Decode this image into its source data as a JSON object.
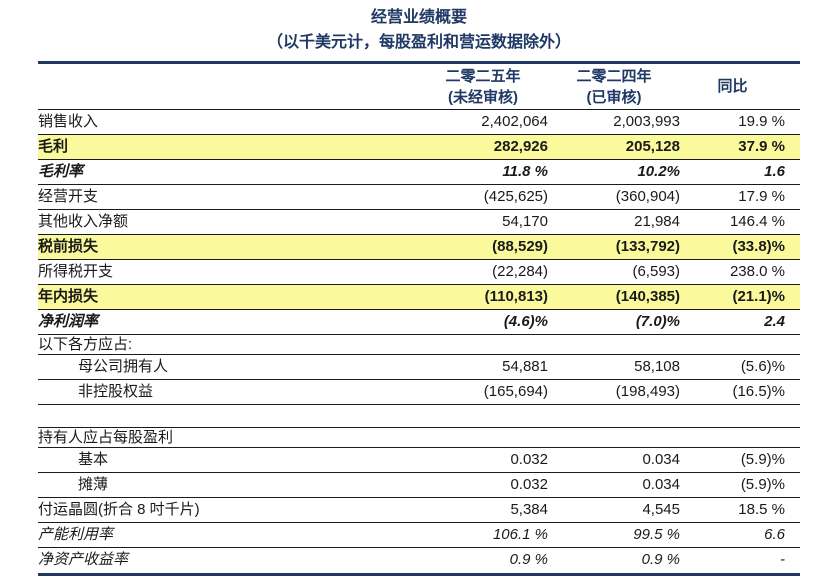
{
  "title": "经营业绩概要",
  "subtitle": "（以千美元计，每股盈利和营运数据除外）",
  "columns": {
    "y2025_line1": "二零二五年",
    "y2025_line2": "(未经审核)",
    "y2024_line1": "二零二四年",
    "y2024_line2": "(已审核)",
    "yoy": "同比"
  },
  "rows": [
    {
      "label": "销售收入",
      "v2025": "2,402,064",
      "v2024": "2,003,993",
      "yoy": "19.9 %",
      "style": "normal"
    },
    {
      "label": "毛利",
      "v2025": "282,926",
      "v2024": "205,128",
      "yoy": "37.9 %",
      "style": "highlight"
    },
    {
      "label": "毛利率",
      "v2025": "11.8 %",
      "v2024": "10.2%",
      "yoy": "1.6",
      "style": "bold-italic"
    },
    {
      "label": "经营开支",
      "v2025": "(425,625)",
      "v2024": "(360,904)",
      "yoy": "17.9 %",
      "style": "normal"
    },
    {
      "label": "其他收入净额",
      "v2025": "54,170",
      "v2024": "21,984",
      "yoy": "146.4 %",
      "style": "normal"
    },
    {
      "label": "税前损失",
      "v2025": "(88,529)",
      "v2024": "(133,792)",
      "yoy": "(33.8)%",
      "style": "highlight"
    },
    {
      "label": "所得税开支",
      "v2025": "(22,284)",
      "v2024": "(6,593)",
      "yoy": "238.0 %",
      "style": "normal"
    },
    {
      "label": "年内损失",
      "v2025": "(110,813)",
      "v2024": "(140,385)",
      "yoy": "(21.1)%",
      "style": "highlight"
    },
    {
      "label": "净利润率",
      "v2025": "(4.6)%",
      "v2024": "(7.0)%",
      "yoy": "2.4",
      "style": "bold-italic"
    },
    {
      "label": "以下各方应占:",
      "v2025": "",
      "v2024": "",
      "yoy": "",
      "style": "section"
    },
    {
      "label": "母公司拥有人",
      "v2025": "54,881",
      "v2024": "58,108",
      "yoy": "(5.6)%",
      "style": "indent"
    },
    {
      "label": "非控股权益",
      "v2025": "(165,694)",
      "v2024": "(198,493)",
      "yoy": "(16.5)%",
      "style": "indent"
    },
    {
      "label": "",
      "v2025": "",
      "v2024": "",
      "yoy": "",
      "style": "spacer"
    },
    {
      "label": "持有人应占每股盈利",
      "v2025": "",
      "v2024": "",
      "yoy": "",
      "style": "section"
    },
    {
      "label": "基本",
      "v2025": "0.032",
      "v2024": "0.034",
      "yoy": "(5.9)%",
      "style": "indent"
    },
    {
      "label": "摊薄",
      "v2025": "0.032",
      "v2024": "0.034",
      "yoy": "(5.9)%",
      "style": "indent"
    },
    {
      "label": "付运晶圆(折合 8 吋千片)",
      "v2025": "5,384",
      "v2024": "4,545",
      "yoy": "18.5 %",
      "style": "normal"
    },
    {
      "label": "产能利用率",
      "v2025": "106.1 %",
      "v2024": "99.5 %",
      "yoy": "6.6",
      "style": "italic"
    },
    {
      "label": "净资产收益率",
      "v2025": "0.9 %",
      "v2024": "0.9 %",
      "yoy": "-",
      "style": "italic"
    }
  ],
  "colors": {
    "navy": "#1F3864",
    "highlight_yellow": "#FAFA9D",
    "row_border": "#1A1A1A"
  }
}
